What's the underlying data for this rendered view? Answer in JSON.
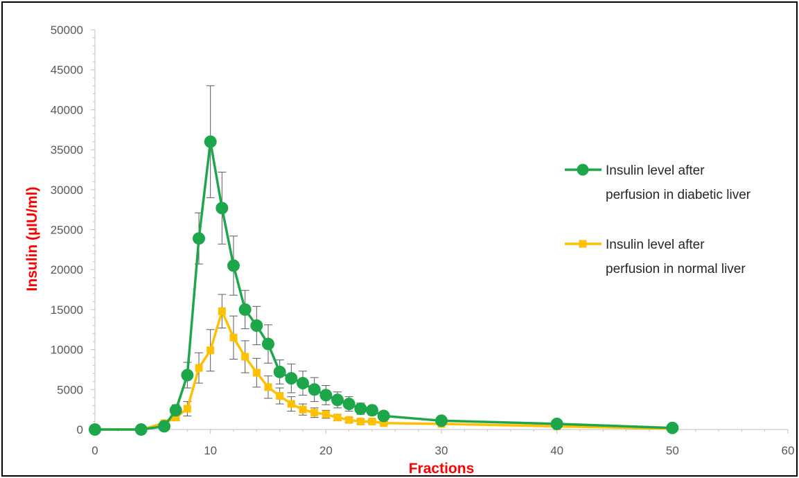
{
  "chart_data": {
    "type": "line",
    "title": "",
    "xlabel": "Fractions",
    "ylabel": "Insulin (µIU/ml)",
    "xlim": [
      0,
      60
    ],
    "ylim": [
      0,
      50000
    ],
    "x_ticks": [
      0,
      10,
      20,
      30,
      40,
      50,
      60
    ],
    "y_ticks": [
      0,
      5000,
      10000,
      15000,
      20000,
      25000,
      30000,
      35000,
      40000,
      45000,
      50000
    ],
    "grid": false,
    "legend_position": "right",
    "series": [
      {
        "name": "Insulin level after perfusion in diabetic liver",
        "legend_lines": [
          "Insulin level after",
          "perfusion in diabetic liver"
        ],
        "color": "#1ea64a",
        "marker": "circle",
        "x": [
          0,
          4,
          6,
          7,
          8,
          9,
          10,
          11,
          12,
          13,
          14,
          15,
          16,
          17,
          18,
          19,
          20,
          21,
          22,
          23,
          24,
          25,
          30,
          40,
          50
        ],
        "y": [
          0,
          0,
          400,
          2400,
          6800,
          23900,
          36000,
          27700,
          20500,
          15000,
          13000,
          10700,
          7200,
          6400,
          5800,
          5000,
          4300,
          3700,
          3200,
          2600,
          2400,
          1700,
          1100,
          700,
          200
        ],
        "error": [
          0,
          0,
          200,
          700,
          1600,
          3200,
          7000,
          4500,
          3700,
          2400,
          2400,
          2400,
          1500,
          1800,
          1500,
          1500,
          1200,
          1000,
          900,
          700,
          600,
          400,
          200,
          200,
          100
        ]
      },
      {
        "name": "Insulin level after perfusion in normal liver",
        "legend_lines": [
          "Insulin level after",
          "perfusion in normal liver"
        ],
        "color": "#ffc000",
        "marker": "square",
        "x": [
          0,
          4,
          6,
          7,
          8,
          9,
          10,
          11,
          12,
          13,
          14,
          15,
          16,
          17,
          18,
          19,
          20,
          21,
          22,
          23,
          24,
          25,
          30,
          40,
          50
        ],
        "y": [
          0,
          0,
          800,
          1500,
          2600,
          7700,
          9900,
          14800,
          11500,
          9100,
          7100,
          5300,
          4200,
          3200,
          2500,
          2100,
          1900,
          1500,
          1200,
          1000,
          1000,
          800,
          700,
          400,
          100
        ],
        "error": [
          0,
          0,
          200,
          400,
          900,
          1900,
          2600,
          2100,
          2700,
          2000,
          1800,
          1400,
          1000,
          900,
          700,
          600,
          500,
          400,
          300,
          300,
          200,
          200,
          100,
          100,
          100
        ]
      }
    ]
  }
}
